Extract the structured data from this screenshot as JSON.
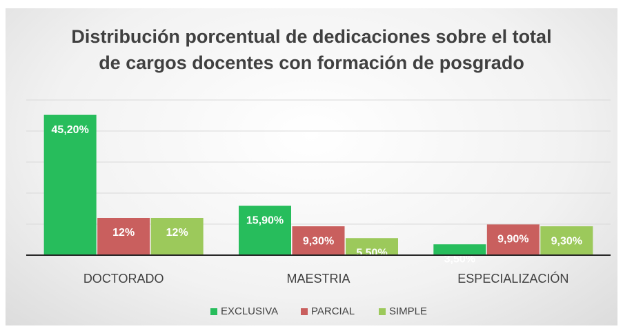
{
  "chart_data": {
    "type": "bar",
    "title": "Distribución porcentual de  dedicaciones sobre el total de cargos docentes con formación de posgrado",
    "categories": [
      "DOCTORADO",
      "MAESTRIA",
      "ESPECIALIZACIÓN"
    ],
    "series": [
      {
        "name": "EXCLUSIVA",
        "color": "#27bd5c",
        "values": [
          45.2,
          15.9,
          3.5
        ],
        "value_labels": [
          "45,20%",
          "15,90%",
          "3,50%"
        ]
      },
      {
        "name": "PARCIAL",
        "color": "#c95f5e",
        "values": [
          12,
          9.3,
          9.9
        ],
        "value_labels": [
          "12%",
          "9,30%",
          "9,90%"
        ]
      },
      {
        "name": "SIMPLE",
        "color": "#9cc95b",
        "values": [
          12,
          5.5,
          9.3
        ],
        "value_labels": [
          "12%",
          "5,50%",
          "9,30%"
        ]
      }
    ],
    "ylim": [
      0,
      50
    ],
    "yticks": [
      0,
      10,
      20,
      30,
      40,
      50
    ],
    "grid": true,
    "legend": "bottom"
  }
}
